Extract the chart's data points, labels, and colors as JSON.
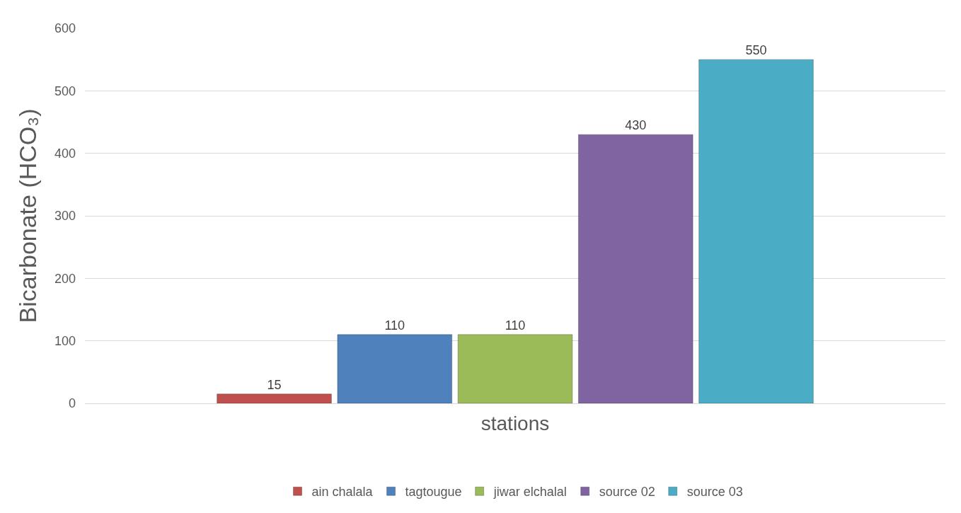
{
  "chart_data": {
    "type": "bar",
    "xlabel": "stations",
    "ylabel": "Bicarbonate (HCO₃)",
    "categories": [
      null
    ],
    "series": [
      {
        "name": "ain chalala",
        "color": "#c0504d",
        "values": [
          15
        ]
      },
      {
        "name": "tagtougue",
        "color": "#4f81bd",
        "values": [
          110
        ]
      },
      {
        "name": "jiwar elchalal",
        "color": "#9bbb59",
        "values": [
          110
        ]
      },
      {
        "name": "source 02",
        "color": "#8064a2",
        "values": [
          430
        ]
      },
      {
        "name": "source 03",
        "color": "#4bacc6",
        "values": [
          550
        ]
      }
    ],
    "ylim": [
      0,
      600
    ],
    "yticks": [
      0,
      100,
      200,
      300,
      400,
      500,
      600
    ],
    "grid": "y",
    "legend": "bottom",
    "data_labels": true
  }
}
